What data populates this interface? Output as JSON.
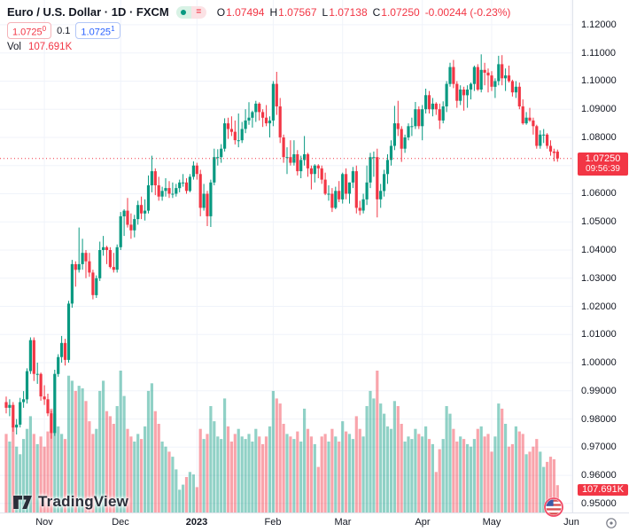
{
  "header": {
    "symbol_title": "Euro / U.S. Dollar · 1D · FXCM",
    "market_status_icon": "market-open-dot",
    "data_mode_icon": "delayed-data",
    "ohlc": {
      "o_label": "O",
      "o": "1.07494",
      "h_label": "H",
      "h": "1.07567",
      "l_label": "L",
      "l": "1.07138",
      "c_label": "C",
      "c": "1.07250",
      "change": "-0.00244 (-0.23%)"
    },
    "sell_price": "1.0725",
    "sell_sup": "0",
    "spread": "0.1",
    "buy_price": "1.0725",
    "buy_sup": "1",
    "vol_label": "Vol",
    "vol_value": "107.691K"
  },
  "price_axis": {
    "ticks": [
      "1.12000",
      "1.11000",
      "1.10000",
      "1.09000",
      "1.08000",
      "1.07000",
      "1.06000",
      "1.05000",
      "1.04000",
      "1.03000",
      "1.02000",
      "1.01000",
      "1.00000",
      "0.99000",
      "0.98000",
      "0.97000",
      "0.96000",
      "0.95000"
    ],
    "show_tick_1_07000": false,
    "last_price_label": "1.07250",
    "countdown": "09:56:39",
    "volume_label": "107.691K"
  },
  "time_axis": {
    "ticks": [
      {
        "label": "Nov",
        "index": 11,
        "year": false
      },
      {
        "label": "Dec",
        "index": 33,
        "year": false
      },
      {
        "label": "2023",
        "index": 55,
        "year": true
      },
      {
        "label": "Feb",
        "index": 77,
        "year": false
      },
      {
        "label": "Mar",
        "index": 97,
        "year": false
      },
      {
        "label": "Apr",
        "index": 120,
        "year": false
      },
      {
        "label": "May",
        "index": 140,
        "year": false
      },
      {
        "label": "Jun",
        "index": 163,
        "year": false
      }
    ]
  },
  "logo": {
    "text": "TradingView"
  },
  "event_marker": {
    "type": "us-flag-economic-event",
    "candle_index": 158
  },
  "colors": {
    "up": "#089981",
    "down": "#f23645",
    "buy_accent": "#2962ff",
    "text": "#131722",
    "muted": "#787b86",
    "grid": "#f0f3fa",
    "axis_border": "#e0e3eb",
    "price_line": "#f23645",
    "volume_opacity": 0.45
  },
  "chart_data": {
    "type": "candlestick+volume",
    "title": "Euro / U.S. Dollar",
    "interval": "1D",
    "exchange": "FXCM",
    "last_price": 1.0725,
    "y_axis": {
      "max_price": 1.1288,
      "min_price": 0.9468,
      "grid_step": 0.01
    },
    "x_axis_tick_note": "indices refer to candle positions, Oct 2022 - May 2023 daily",
    "candles": [
      [
        0.986,
        0.988,
        0.982,
        0.984
      ],
      [
        0.984,
        0.987,
        0.981,
        0.985
      ],
      [
        0.985,
        0.986,
        0.9755,
        0.977
      ],
      [
        0.977,
        0.98,
        0.9745,
        0.978
      ],
      [
        0.978,
        0.9875,
        0.977,
        0.986
      ],
      [
        0.986,
        0.9899,
        0.984,
        0.987
      ],
      [
        0.987,
        0.998,
        0.9855,
        0.997
      ],
      [
        0.997,
        1.009,
        0.996,
        1.008
      ],
      [
        1.008,
        1.009,
        0.9935,
        0.996
      ],
      [
        0.996,
        1.0,
        0.9925,
        0.996
      ],
      [
        0.996,
        0.9965,
        0.9865,
        0.988
      ],
      [
        0.988,
        0.992,
        0.985,
        0.987
      ],
      [
        0.987,
        0.989,
        0.981,
        0.982
      ],
      [
        0.982,
        0.983,
        0.973,
        0.975
      ],
      [
        0.975,
        0.9975,
        0.974,
        0.996
      ],
      [
        0.996,
        1.003,
        0.995,
        1.002
      ],
      [
        1.002,
        1.0095,
        1.0,
        1.007
      ],
      [
        1.007,
        1.0085,
        0.999,
        1.001
      ],
      [
        1.001,
        1.022,
        1.0,
        1.021
      ],
      [
        1.021,
        1.0365,
        1.0195,
        1.035
      ],
      [
        1.035,
        1.036,
        1.027,
        1.033
      ],
      [
        1.033,
        1.048,
        1.032,
        1.035
      ],
      [
        1.035,
        1.044,
        1.033,
        1.039
      ],
      [
        1.039,
        1.04,
        1.03,
        1.036
      ],
      [
        1.036,
        1.039,
        1.0305,
        1.032
      ],
      [
        1.032,
        1.033,
        1.0225,
        1.024
      ],
      [
        1.024,
        1.031,
        1.023,
        1.03
      ],
      [
        1.03,
        1.043,
        1.029,
        1.04
      ],
      [
        1.04,
        1.045,
        1.038,
        1.041
      ],
      [
        1.041,
        1.0415,
        1.035,
        1.04
      ],
      [
        1.04,
        1.041,
        1.0335,
        1.034
      ],
      [
        1.034,
        1.039,
        1.032,
        1.033
      ],
      [
        1.033,
        1.042,
        1.032,
        1.041
      ],
      [
        1.041,
        1.0535,
        1.04,
        1.052
      ],
      [
        1.052,
        1.0545,
        1.045,
        1.054
      ],
      [
        1.054,
        1.0585,
        1.048,
        1.049
      ],
      [
        1.049,
        1.053,
        1.044,
        1.047
      ],
      [
        1.047,
        1.0525,
        1.0445,
        1.051
      ],
      [
        1.051,
        1.0575,
        1.049,
        1.056
      ],
      [
        1.056,
        1.059,
        1.051,
        1.053
      ],
      [
        1.053,
        1.058,
        1.0505,
        1.054
      ],
      [
        1.054,
        1.0665,
        1.053,
        1.063
      ],
      [
        1.063,
        1.0735,
        1.0605,
        1.068
      ],
      [
        1.068,
        1.069,
        1.0595,
        1.063
      ],
      [
        1.063,
        1.066,
        1.0575,
        1.059
      ],
      [
        1.059,
        1.0625,
        1.0575,
        1.061
      ],
      [
        1.061,
        1.0655,
        1.059,
        1.062
      ],
      [
        1.062,
        1.0645,
        1.0585,
        1.06
      ],
      [
        1.06,
        1.064,
        1.0585,
        1.06
      ],
      [
        1.06,
        1.0635,
        1.059,
        1.062
      ],
      [
        1.062,
        1.065,
        1.0605,
        1.064
      ],
      [
        1.064,
        1.067,
        1.0625,
        1.064
      ],
      [
        1.064,
        1.0655,
        1.06,
        1.061
      ],
      [
        1.061,
        1.067,
        1.0605,
        1.066
      ],
      [
        1.066,
        1.0715,
        1.065,
        1.07
      ],
      [
        1.07,
        1.071,
        1.065,
        1.067
      ],
      [
        1.067,
        1.0685,
        1.052,
        1.055
      ],
      [
        1.055,
        1.0635,
        1.054,
        1.06
      ],
      [
        1.06,
        1.061,
        1.0485,
        1.052
      ],
      [
        1.052,
        1.065,
        1.0482,
        1.064
      ],
      [
        1.064,
        1.076,
        1.063,
        1.073
      ],
      [
        1.073,
        1.0758,
        1.07,
        1.073
      ],
      [
        1.073,
        1.0776,
        1.071,
        1.076
      ],
      [
        1.076,
        1.0868,
        1.075,
        1.085
      ],
      [
        1.085,
        1.087,
        1.0795,
        1.083
      ],
      [
        1.083,
        1.0875,
        1.0805,
        1.082
      ],
      [
        1.082,
        1.086,
        1.0775,
        1.079
      ],
      [
        1.079,
        1.0885,
        1.0765,
        1.079
      ],
      [
        1.079,
        1.0855,
        1.078,
        1.083
      ],
      [
        1.083,
        1.09,
        1.0815,
        1.086
      ],
      [
        1.086,
        1.0925,
        1.0845,
        1.087
      ],
      [
        1.087,
        1.0895,
        1.0835,
        1.089
      ],
      [
        1.089,
        1.093,
        1.0855,
        1.092
      ],
      [
        1.092,
        1.0925,
        1.086,
        1.089
      ],
      [
        1.089,
        1.09,
        1.0837,
        1.087
      ],
      [
        1.087,
        1.0915,
        1.084,
        1.085
      ],
      [
        1.085,
        1.0875,
        1.08,
        1.086
      ],
      [
        1.086,
        1.1,
        1.084,
        1.099
      ],
      [
        1.099,
        1.1033,
        1.088,
        1.091
      ],
      [
        1.091,
        1.094,
        1.078,
        1.08
      ],
      [
        1.08,
        1.081,
        1.071,
        1.073
      ],
      [
        1.073,
        1.0765,
        1.067,
        1.073
      ],
      [
        1.073,
        1.079,
        1.07,
        1.071
      ],
      [
        1.071,
        1.079,
        1.07,
        1.074
      ],
      [
        1.074,
        1.0755,
        1.0665,
        1.068
      ],
      [
        1.068,
        1.0735,
        1.0655,
        1.072
      ],
      [
        1.072,
        1.0805,
        1.07,
        1.074
      ],
      [
        1.074,
        1.0745,
        1.066,
        1.069
      ],
      [
        1.069,
        1.07,
        1.0615,
        1.067
      ],
      [
        1.067,
        1.0705,
        1.064,
        1.07
      ],
      [
        1.07,
        1.0705,
        1.0655,
        1.069
      ],
      [
        1.069,
        1.07,
        1.0635,
        1.065
      ],
      [
        1.065,
        1.0675,
        1.0595,
        1.06
      ],
      [
        1.06,
        1.063,
        1.0575,
        1.06
      ],
      [
        1.06,
        1.062,
        1.0535,
        1.055
      ],
      [
        1.055,
        1.0625,
        1.0545,
        1.061
      ],
      [
        1.061,
        1.0645,
        1.057,
        1.058
      ],
      [
        1.058,
        1.0675,
        1.0565,
        1.067
      ],
      [
        1.067,
        1.069,
        1.058,
        1.06
      ],
      [
        1.06,
        1.064,
        1.0565,
        1.064
      ],
      [
        1.064,
        1.0695,
        1.062,
        1.068
      ],
      [
        1.068,
        1.07,
        1.053,
        1.055
      ],
      [
        1.055,
        1.0575,
        1.0524,
        1.054
      ],
      [
        1.054,
        1.06,
        1.053,
        1.058
      ],
      [
        1.058,
        1.07,
        1.056,
        1.064
      ],
      [
        1.064,
        1.0745,
        1.062,
        1.073
      ],
      [
        1.073,
        1.075,
        1.066,
        1.073
      ],
      [
        1.073,
        1.076,
        1.0516,
        1.058
      ],
      [
        1.058,
        1.0635,
        1.055,
        1.061
      ],
      [
        1.061,
        1.0685,
        1.059,
        1.067
      ],
      [
        1.067,
        1.074,
        1.0635,
        1.072
      ],
      [
        1.072,
        1.079,
        1.07,
        1.077
      ],
      [
        1.077,
        1.0912,
        1.0755,
        1.085
      ],
      [
        1.085,
        1.093,
        1.0805,
        1.083
      ],
      [
        1.083,
        1.084,
        1.0713,
        1.076
      ],
      [
        1.076,
        1.081,
        1.0745,
        1.08
      ],
      [
        1.08,
        1.085,
        1.079,
        1.084
      ],
      [
        1.084,
        1.087,
        1.0805,
        1.084
      ],
      [
        1.084,
        1.0926,
        1.083,
        1.09
      ],
      [
        1.09,
        1.091,
        1.083,
        1.084
      ],
      [
        1.084,
        1.0915,
        1.079,
        1.09
      ],
      [
        1.09,
        1.0973,
        1.0885,
        1.095
      ],
      [
        1.095,
        1.0965,
        1.0885,
        1.09
      ],
      [
        1.09,
        1.094,
        1.0875,
        1.092
      ],
      [
        1.092,
        1.0925,
        1.088,
        1.09
      ],
      [
        1.09,
        1.092,
        1.083,
        1.086
      ],
      [
        1.086,
        1.0928,
        1.085,
        1.091
      ],
      [
        1.091,
        1.1,
        1.089,
        1.099
      ],
      [
        1.099,
        1.1065,
        1.098,
        1.105
      ],
      [
        1.105,
        1.1075,
        1.0975,
        1.099
      ],
      [
        1.099,
        1.1,
        1.0905,
        1.093
      ],
      [
        1.093,
        1.0985,
        1.0915,
        1.097
      ],
      [
        1.097,
        1.098,
        1.0895,
        1.095
      ],
      [
        1.095,
        1.0985,
        1.0905,
        1.097
      ],
      [
        1.097,
        1.0995,
        1.0935,
        1.099
      ],
      [
        1.099,
        1.1055,
        1.0965,
        1.105
      ],
      [
        1.105,
        1.106,
        1.0965,
        1.097
      ],
      [
        1.097,
        1.1095,
        1.096,
        1.104
      ],
      [
        1.104,
        1.1065,
        1.0985,
        1.103
      ],
      [
        1.103,
        1.1045,
        1.096,
        1.102
      ],
      [
        1.102,
        1.1035,
        1.0965,
        1.098
      ],
      [
        1.098,
        1.101,
        1.094,
        1.1
      ],
      [
        1.1,
        1.109,
        1.0985,
        1.106
      ],
      [
        1.106,
        1.1092,
        1.0985,
        1.101
      ],
      [
        1.101,
        1.1045,
        1.0965,
        1.102
      ],
      [
        1.102,
        1.1055,
        1.0995,
        1.1
      ],
      [
        1.1,
        1.1005,
        1.0945,
        1.096
      ],
      [
        1.096,
        1.1,
        1.094,
        1.098
      ],
      [
        1.098,
        1.0995,
        1.09,
        1.091
      ],
      [
        1.091,
        1.0935,
        1.0845,
        1.085
      ],
      [
        1.085,
        1.089,
        1.0845,
        1.087
      ],
      [
        1.087,
        1.0905,
        1.0855,
        1.086
      ],
      [
        1.086,
        1.087,
        1.081,
        1.084
      ],
      [
        1.084,
        1.0845,
        1.076,
        1.077
      ],
      [
        1.077,
        1.0825,
        1.076,
        1.081
      ],
      [
        1.081,
        1.083,
        1.078,
        1.081
      ],
      [
        1.081,
        1.0815,
        1.076,
        1.077
      ],
      [
        1.077,
        1.079,
        1.0735,
        1.075
      ],
      [
        1.075,
        1.076,
        1.0715,
        1.0745
      ],
      [
        1.07494,
        1.07567,
        1.07138,
        1.0725
      ]
    ],
    "volumes": [
      310,
      280,
      340,
      260,
      230,
      290,
      330,
      380,
      310,
      270,
      300,
      260,
      320,
      410,
      390,
      340,
      310,
      290,
      540,
      520,
      480,
      500,
      490,
      440,
      360,
      310,
      330,
      480,
      520,
      400,
      380,
      350,
      420,
      560,
      460,
      330,
      300,
      280,
      310,
      290,
      340,
      480,
      510,
      400,
      350,
      280,
      260,
      240,
      220,
      170,
      90,
      110,
      140,
      160,
      150,
      100,
      330,
      290,
      310,
      420,
      360,
      300,
      290,
      450,
      340,
      280,
      310,
      330,
      300,
      290,
      310,
      280,
      330,
      300,
      270,
      300,
      340,
      480,
      450,
      430,
      350,
      310,
      300,
      290,
      320,
      280,
      410,
      330,
      300,
      270,
      180,
      300,
      310,
      280,
      330,
      300,
      280,
      360,
      320,
      310,
      290,
      380,
      330,
      300,
      420,
      480,
      450,
      560,
      430,
      390,
      340,
      330,
      440,
      420,
      350,
      280,
      300,
      290,
      330,
      310,
      300,
      340,
      290,
      270,
      160,
      250,
      290,
      420,
      390,
      330,
      280,
      300,
      290,
      270,
      260,
      290,
      330,
      340,
      300,
      310,
      240,
      300,
      430,
      410,
      350,
      260,
      270,
      340,
      320,
      310,
      230,
      240,
      260,
      290,
      240,
      180,
      200,
      220,
      210,
      107.691
    ],
    "max_volume_scale": 560,
    "last_volume_label": "107.691K"
  }
}
